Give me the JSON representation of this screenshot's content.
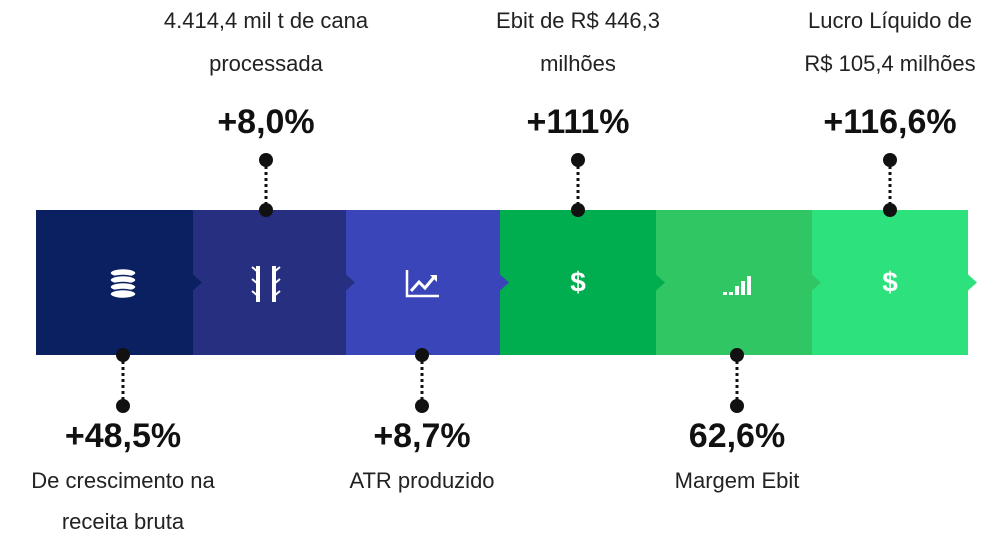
{
  "items": [
    {
      "value": "+48,5%",
      "label": [
        "De crescimento na",
        "receita bruta"
      ]
    },
    {
      "value": "+8,0%",
      "label": [
        "4.414,4 mil t de cana",
        "processada"
      ]
    },
    {
      "value": "+8,7%",
      "label": [
        "ATR produzido"
      ]
    },
    {
      "value": "+111%",
      "label": [
        "Ebit de R$ 446,3",
        "milhões"
      ]
    },
    {
      "value": "62,6%",
      "label": [
        "Margem Ebit"
      ]
    },
    {
      "value": "+116,6%",
      "label": [
        "Lucro Líquido de",
        "R$ 105,4 milhões"
      ]
    }
  ]
}
